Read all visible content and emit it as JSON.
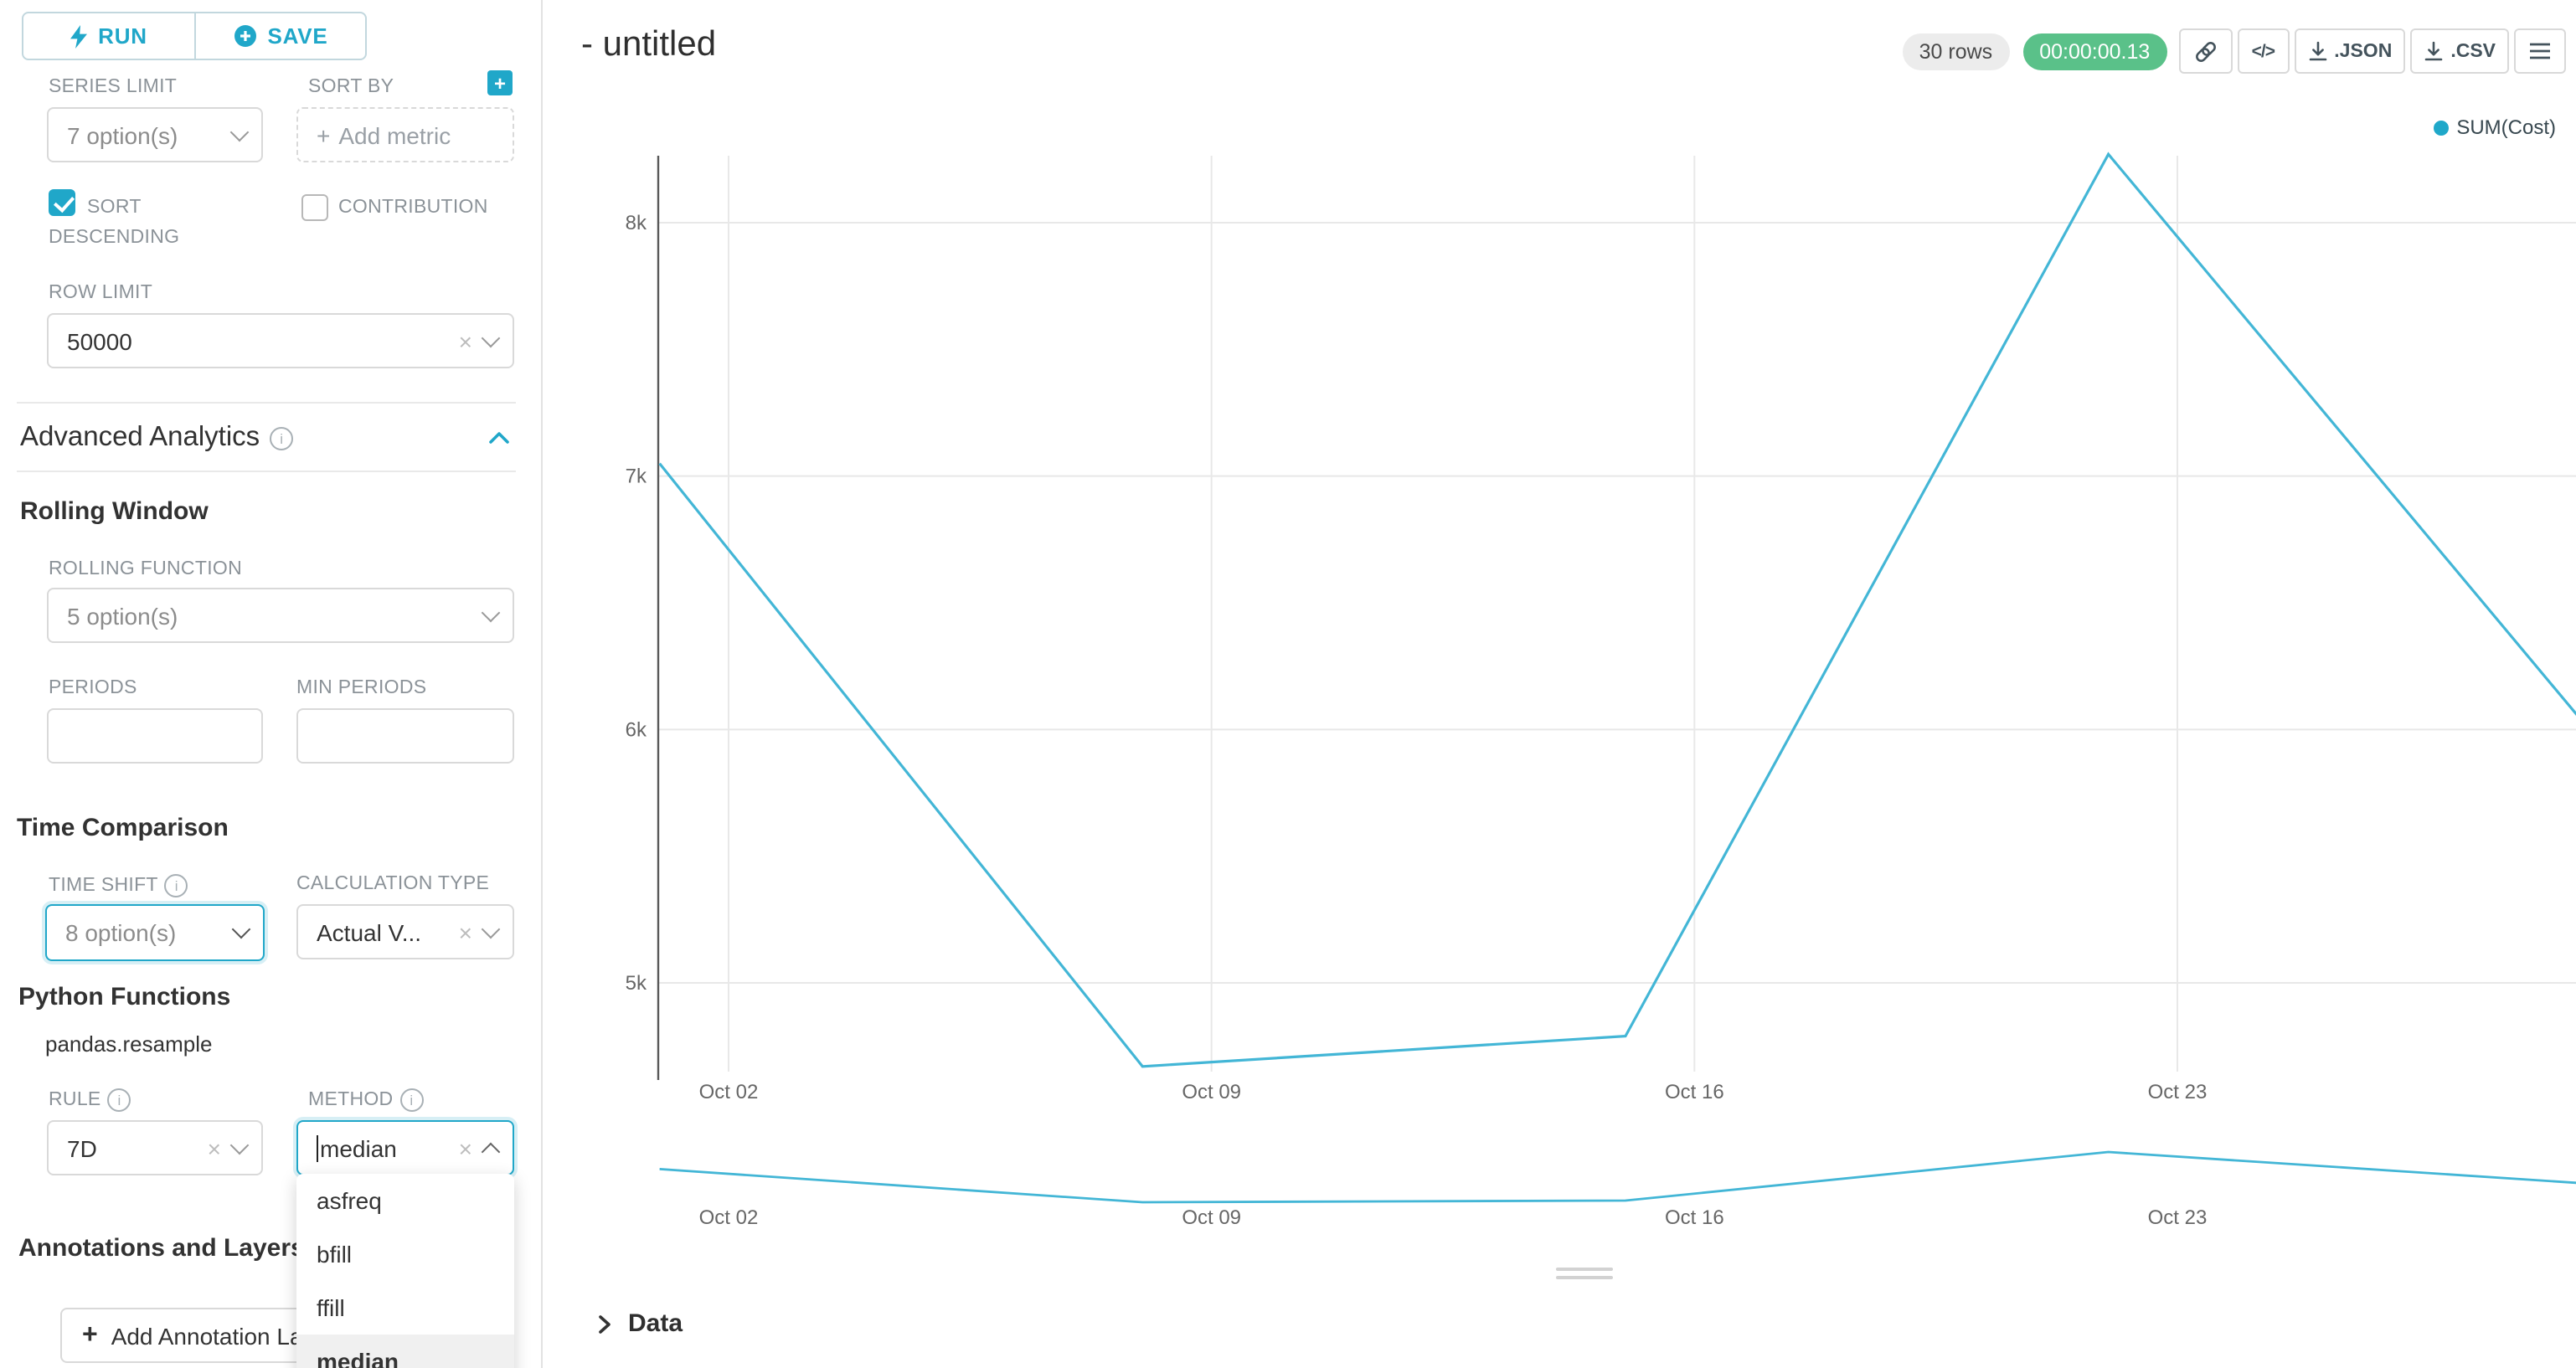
{
  "colors": {
    "primary": "#20a7c9",
    "line": "#43b6d6",
    "success": "#5ac189"
  },
  "toolbar": {
    "run": "RUN",
    "save": "SAVE"
  },
  "controls": {
    "series_limit_label": "SERIES LIMIT",
    "series_limit_value": "7 option(s)",
    "sort_by_label": "SORT BY",
    "sort_by_placeholder": "Add metric",
    "sort_descending_label": "SORT DESCENDING",
    "contribution_label": "CONTRIBUTION",
    "row_limit_label": "ROW LIMIT",
    "row_limit_value": "50000",
    "advanced_analytics_title": "Advanced Analytics",
    "rolling_window_title": "Rolling Window",
    "rolling_function_label": "ROLLING FUNCTION",
    "rolling_function_value": "5 option(s)",
    "periods_label": "PERIODS",
    "min_periods_label": "MIN PERIODS",
    "time_comparison_title": "Time Comparison",
    "time_shift_label": "TIME SHIFT",
    "time_shift_value": "8 option(s)",
    "calculation_type_label": "CALCULATION TYPE",
    "calculation_type_value": "Actual V...",
    "python_functions_title": "Python Functions",
    "pandas_resample": "pandas.resample",
    "rule_label": "RULE",
    "rule_value": "7D",
    "method_label": "METHOD",
    "method_value": "median",
    "method_options": [
      "asfreq",
      "bfill",
      "ffill",
      "median"
    ],
    "method_selected": "median",
    "annotations_title": "Annotations and Layers",
    "add_annotation_label": "Add Annotation Layer"
  },
  "header": {
    "title": "- untitled",
    "rows_badge": "30 rows",
    "timer": "00:00:00.13",
    "json_label": ".JSON",
    "csv_label": ".CSV"
  },
  "chart_data": {
    "type": "line",
    "title": "",
    "legend": [
      {
        "name": "SUM(Cost)",
        "color": "#1fa8c9"
      }
    ],
    "x_ticks": [
      {
        "day": 2,
        "label": "Oct 02"
      },
      {
        "day": 9,
        "label": "Oct 09"
      },
      {
        "day": 16,
        "label": "Oct 16"
      },
      {
        "day": 23,
        "label": "Oct 23"
      }
    ],
    "y_ticks": [
      {
        "value": 8000,
        "label": "8k"
      },
      {
        "value": 7000,
        "label": "7k"
      },
      {
        "value": 6000,
        "label": "6k"
      },
      {
        "value": 5000,
        "label": "5k"
      }
    ],
    "series": [
      {
        "name": "SUM(Cost)",
        "color": "#43b6d6",
        "points": [
          {
            "day": 1,
            "value": 7050
          },
          {
            "day": 8,
            "value": 4670
          },
          {
            "day": 15,
            "value": 4790
          },
          {
            "day": 22,
            "value": 8270
          },
          {
            "day": 29,
            "value": 5990
          }
        ]
      }
    ],
    "grid": true,
    "legend_position": "top-right",
    "mini_chart": true
  },
  "data_panel_title": "Data"
}
